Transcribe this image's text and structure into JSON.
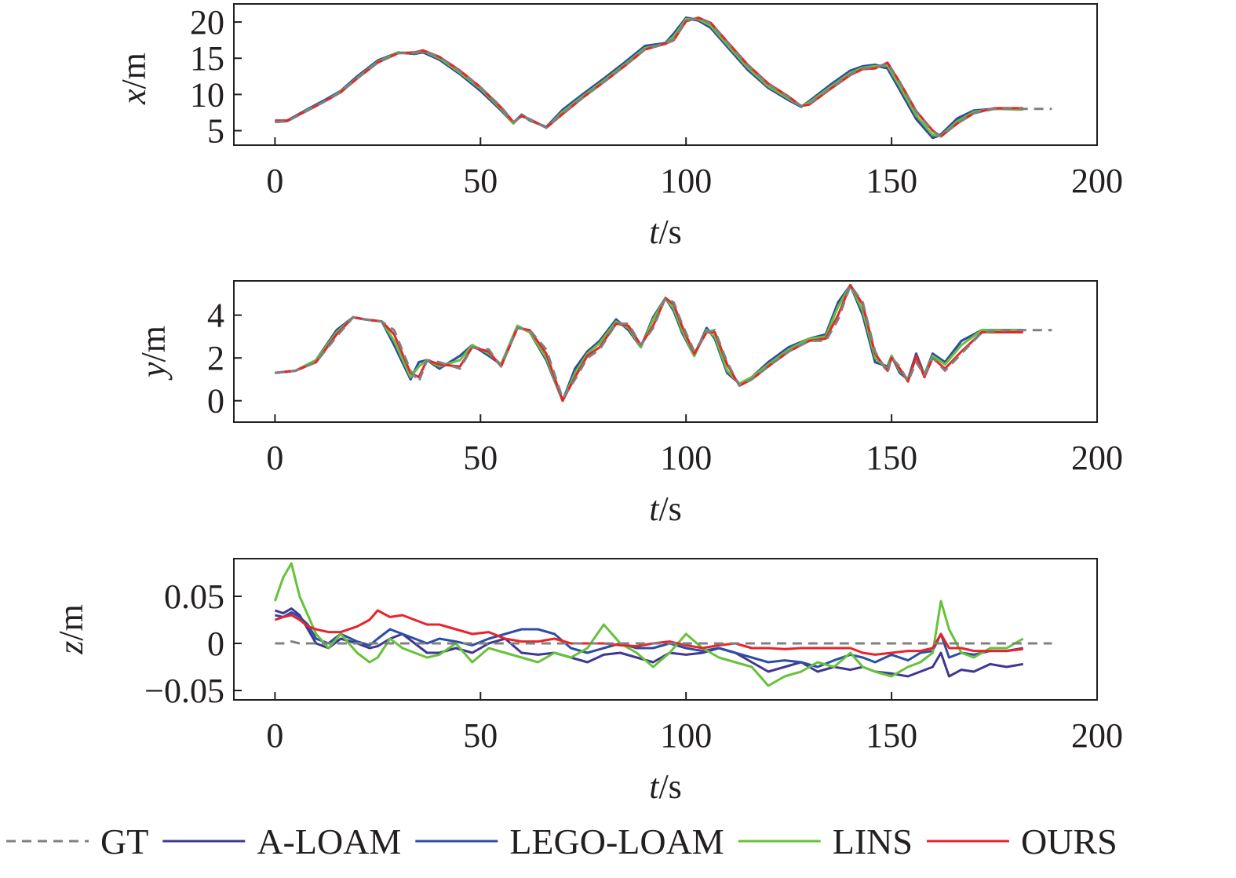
{
  "legend": {
    "placement": "bottom",
    "items": [
      {
        "label": "GT",
        "color": "#808080",
        "dash": true
      },
      {
        "label": "A-LOAM",
        "color": "#3f3893",
        "dash": false
      },
      {
        "label": "LEGO-LOAM",
        "color": "#2c4ea3",
        "dash": false
      },
      {
        "label": "LINS",
        "color": "#66c23a",
        "dash": false
      },
      {
        "label": "OURS",
        "color": "#e8242a",
        "dash": false
      }
    ]
  },
  "chart_data": [
    {
      "type": "line",
      "title": "",
      "xlabel_var": "t",
      "xlabel_unit": "/s",
      "ylabel_var": "x",
      "ylabel_unit": "/m",
      "xlim": [
        -10,
        200
      ],
      "ylim": [
        3,
        22.5
      ],
      "xticks": [
        0,
        50,
        100,
        150,
        200
      ],
      "yticks": [
        5,
        10,
        15,
        20
      ],
      "grid": false,
      "x": [
        0,
        3,
        8,
        12,
        16,
        20,
        25,
        30,
        34,
        36,
        40,
        45,
        50,
        55,
        58,
        60,
        62,
        66,
        70,
        75,
        80,
        85,
        90,
        95,
        97,
        100,
        103,
        106,
        110,
        115,
        120,
        125,
        128,
        130,
        135,
        140,
        143,
        146,
        149,
        152,
        156,
        160,
        162,
        166,
        170,
        175,
        182
      ],
      "series": [
        {
          "name": "GT",
          "values": [
            6.2,
            6.3,
            7.8,
            9.0,
            10.3,
            12.2,
            14.4,
            15.7,
            15.7,
            16.0,
            15.2,
            13.2,
            11.0,
            8.3,
            6.2,
            7.0,
            6.6,
            5.4,
            7.4,
            9.6,
            11.7,
            13.9,
            16.2,
            17.0,
            17.6,
            20.2,
            20.6,
            19.8,
            17.2,
            14.0,
            11.4,
            9.6,
            8.4,
            8.7,
            10.8,
            12.8,
            13.6,
            13.7,
            14.3,
            11.6,
            7.6,
            4.9,
            4.2,
            6.0,
            7.4,
            8.0,
            8.0
          ]
        },
        {
          "name": "A-LOAM",
          "values": [
            6.2,
            6.3,
            7.9,
            9.1,
            10.4,
            12.4,
            14.6,
            15.8,
            15.6,
            15.8,
            14.8,
            12.8,
            10.5,
            7.8,
            6.0,
            7.2,
            6.4,
            5.5,
            7.8,
            10.0,
            12.1,
            14.3,
            16.6,
            17.1,
            18.3,
            20.5,
            20.2,
            19.2,
            16.6,
            13.4,
            10.9,
            9.2,
            8.3,
            9.0,
            11.2,
            13.2,
            13.8,
            14.0,
            13.6,
            10.6,
            6.6,
            4.0,
            4.4,
            6.6,
            7.7,
            8.0,
            8.0
          ]
        },
        {
          "name": "LEGO-LOAM",
          "values": [
            6.3,
            6.4,
            8.0,
            9.2,
            10.5,
            12.5,
            14.7,
            15.8,
            15.6,
            15.9,
            14.9,
            12.9,
            10.6,
            7.9,
            6.1,
            7.2,
            6.5,
            5.5,
            7.9,
            10.1,
            12.2,
            14.4,
            16.7,
            17.1,
            18.4,
            20.6,
            20.3,
            19.3,
            16.7,
            13.5,
            11.0,
            9.3,
            8.3,
            9.1,
            11.3,
            13.3,
            13.9,
            14.1,
            13.7,
            10.8,
            6.8,
            4.1,
            4.5,
            6.7,
            7.8,
            8.0,
            8.0
          ]
        },
        {
          "name": "LINS",
          "values": [
            6.2,
            6.3,
            7.9,
            9.0,
            10.4,
            12.3,
            14.5,
            15.8,
            15.7,
            16.0,
            15.0,
            13.0,
            10.8,
            8.0,
            6.0,
            7.1,
            6.5,
            5.4,
            7.6,
            9.8,
            11.9,
            14.1,
            16.4,
            17.0,
            18.0,
            20.4,
            20.4,
            19.5,
            16.9,
            13.7,
            11.1,
            9.4,
            8.4,
            8.9,
            11.0,
            13.0,
            13.7,
            13.9,
            14.0,
            11.1,
            7.1,
            4.4,
            4.3,
            6.3,
            7.6,
            8.0,
            7.9
          ]
        },
        {
          "name": "OURS",
          "values": [
            6.4,
            6.4,
            7.8,
            9.0,
            10.3,
            12.2,
            14.4,
            15.7,
            15.8,
            16.1,
            15.2,
            13.3,
            11.0,
            8.2,
            6.2,
            7.0,
            6.6,
            5.4,
            7.3,
            9.6,
            11.7,
            13.9,
            16.2,
            17.0,
            17.5,
            20.1,
            20.6,
            19.9,
            17.3,
            14.1,
            11.5,
            9.7,
            8.4,
            8.6,
            10.7,
            12.7,
            13.5,
            13.6,
            14.4,
            11.7,
            7.7,
            5.0,
            4.2,
            6.0,
            7.4,
            8.1,
            8.1
          ]
        }
      ]
    },
    {
      "type": "line",
      "title": "",
      "xlabel_var": "t",
      "xlabel_unit": "/s",
      "ylabel_var": "y",
      "ylabel_unit": "/m",
      "xlim": [
        -10,
        200
      ],
      "ylim": [
        -1.0,
        5.6
      ],
      "xticks": [
        0,
        50,
        100,
        150,
        200
      ],
      "yticks": [
        0,
        2,
        4
      ],
      "grid": false,
      "x": [
        0,
        5,
        10,
        15,
        19,
        22,
        26,
        29,
        33,
        35,
        37,
        40,
        45,
        48,
        52,
        55,
        59,
        62,
        66,
        70,
        73,
        76,
        79,
        83,
        86,
        89,
        92,
        95,
        97,
        99,
        102,
        105,
        107,
        110,
        113,
        116,
        120,
        125,
        130,
        134,
        137,
        140,
        143,
        146,
        149,
        150,
        152,
        154,
        156,
        158,
        160,
        163,
        167,
        172,
        178,
        182
      ],
      "series": [
        {
          "name": "GT",
          "values": [
            1.3,
            1.4,
            1.8,
            3.0,
            3.9,
            3.8,
            3.7,
            3.3,
            1.4,
            0.9,
            1.9,
            1.8,
            1.5,
            2.5,
            2.4,
            1.6,
            3.4,
            3.3,
            2.4,
            0.1,
            1.0,
            2.0,
            2.4,
            3.6,
            3.6,
            2.6,
            3.4,
            4.8,
            4.6,
            3.6,
            2.3,
            3.2,
            3.3,
            1.8,
            0.7,
            1.0,
            1.6,
            2.3,
            2.8,
            2.8,
            3.8,
            5.4,
            4.6,
            2.3,
            1.3,
            2.0,
            1.6,
            0.9,
            1.8,
            1.2,
            2.0,
            1.4,
            2.2,
            3.2,
            3.3,
            3.3
          ]
        },
        {
          "name": "A-LOAM",
          "values": [
            1.3,
            1.4,
            1.9,
            3.3,
            3.9,
            3.8,
            3.7,
            2.6,
            1.0,
            1.8,
            1.9,
            1.5,
            2.1,
            2.6,
            2.1,
            1.7,
            3.5,
            3.2,
            1.9,
            0.0,
            1.5,
            2.3,
            2.8,
            3.8,
            3.3,
            2.5,
            3.9,
            4.8,
            4.2,
            3.2,
            2.1,
            3.4,
            2.9,
            1.3,
            0.8,
            1.1,
            1.8,
            2.5,
            2.9,
            3.1,
            4.6,
            5.4,
            4.0,
            1.8,
            1.6,
            2.1,
            1.3,
            1.0,
            2.2,
            1.2,
            2.2,
            1.8,
            2.8,
            3.3,
            3.3,
            3.3
          ]
        },
        {
          "name": "LEGO-LOAM",
          "values": [
            1.3,
            1.4,
            1.9,
            3.3,
            3.9,
            3.8,
            3.7,
            2.6,
            1.0,
            1.8,
            1.9,
            1.5,
            2.1,
            2.6,
            2.1,
            1.7,
            3.5,
            3.2,
            1.9,
            0.0,
            1.5,
            2.3,
            2.8,
            3.8,
            3.3,
            2.5,
            3.9,
            4.8,
            4.2,
            3.2,
            2.1,
            3.4,
            2.9,
            1.3,
            0.8,
            1.1,
            1.8,
            2.5,
            2.9,
            3.1,
            4.6,
            5.4,
            4.0,
            1.8,
            1.6,
            2.1,
            1.3,
            1.0,
            2.2,
            1.2,
            2.2,
            1.8,
            2.8,
            3.3,
            3.3,
            3.3
          ]
        },
        {
          "name": "LINS",
          "values": [
            1.3,
            1.4,
            1.9,
            3.2,
            3.9,
            3.8,
            3.7,
            2.8,
            1.1,
            1.6,
            1.9,
            1.6,
            1.9,
            2.6,
            2.2,
            1.7,
            3.5,
            3.2,
            2.0,
            0.0,
            1.3,
            2.2,
            2.7,
            3.7,
            3.4,
            2.5,
            3.8,
            4.8,
            4.3,
            3.3,
            2.1,
            3.3,
            3.0,
            1.4,
            0.8,
            1.1,
            1.7,
            2.4,
            2.9,
            3.0,
            4.4,
            5.4,
            4.2,
            2.0,
            1.5,
            2.1,
            1.4,
            1.0,
            2.0,
            1.2,
            2.1,
            1.7,
            2.6,
            3.3,
            3.3,
            3.3
          ]
        },
        {
          "name": "OURS",
          "values": [
            1.3,
            1.4,
            1.8,
            3.1,
            3.9,
            3.8,
            3.7,
            3.1,
            1.3,
            1.1,
            1.9,
            1.7,
            1.6,
            2.5,
            2.3,
            1.6,
            3.4,
            3.3,
            2.2,
            0.0,
            1.1,
            2.1,
            2.5,
            3.6,
            3.5,
            2.6,
            3.5,
            4.8,
            4.5,
            3.5,
            2.2,
            3.2,
            3.2,
            1.7,
            0.7,
            1.0,
            1.6,
            2.3,
            2.8,
            2.9,
            4.0,
            5.4,
            4.5,
            2.2,
            1.4,
            2.0,
            1.5,
            0.9,
            2.1,
            1.1,
            2.0,
            1.5,
            2.3,
            3.2,
            3.2,
            3.2
          ]
        }
      ]
    },
    {
      "type": "line",
      "title": "",
      "xlabel_var": "t",
      "xlabel_unit": "/s",
      "ylabel_var": "z",
      "ylabel_unit": "/m",
      "xlim": [
        -10,
        200
      ],
      "ylim": [
        -0.06,
        0.09
      ],
      "xticks": [
        0,
        50,
        100,
        150,
        200
      ],
      "yticks": [
        -0.05,
        0,
        0.05
      ],
      "ytick_labels": [
        "−0.05",
        "0",
        "0.05"
      ],
      "grid": false,
      "x": [
        0,
        2,
        4,
        6,
        8,
        10,
        13,
        16,
        20,
        23,
        25,
        28,
        31,
        34,
        37,
        40,
        44,
        48,
        52,
        56,
        60,
        64,
        68,
        72,
        76,
        80,
        84,
        88,
        92,
        96,
        100,
        104,
        108,
        112,
        116,
        120,
        124,
        128,
        132,
        136,
        140,
        143,
        146,
        150,
        154,
        157,
        160,
        162,
        164,
        167,
        170,
        174,
        178,
        182
      ],
      "series": [
        {
          "name": "GT",
          "values": [
            0.0,
            0.0,
            0.002,
            0.0,
            0.0,
            0.0,
            0.0,
            0.0,
            0.0,
            0.0,
            0.0,
            0.0,
            0.0,
            0.0,
            0.0,
            0.0,
            0.0,
            0.0,
            0.0,
            0.0,
            0.0,
            0.0,
            0.0,
            0.0,
            0.0,
            0.0,
            0.0,
            0.0,
            0.0,
            0.0,
            0.0,
            0.0,
            0.0,
            0.0,
            0.0,
            0.0,
            0.0,
            0.0,
            0.0,
            0.0,
            0.0,
            0.0,
            0.0,
            0.0,
            0.0,
            0.0,
            0.0,
            0.0,
            0.0,
            0.0,
            0.0,
            0.0,
            0.0,
            0.0
          ]
        },
        {
          "name": "A-LOAM",
          "values": [
            0.035,
            0.032,
            0.037,
            0.03,
            0.015,
            0.0,
            -0.005,
            0.005,
            0.0,
            -0.005,
            -0.003,
            0.005,
            0.01,
            0.0,
            -0.01,
            -0.01,
            -0.005,
            -0.01,
            0.0,
            0.005,
            -0.01,
            -0.012,
            -0.01,
            -0.015,
            -0.02,
            -0.012,
            -0.01,
            -0.015,
            -0.02,
            -0.01,
            -0.012,
            -0.01,
            -0.005,
            -0.01,
            -0.02,
            -0.03,
            -0.025,
            -0.02,
            -0.03,
            -0.025,
            -0.028,
            -0.025,
            -0.03,
            -0.032,
            -0.035,
            -0.03,
            -0.025,
            -0.01,
            -0.035,
            -0.028,
            -0.03,
            -0.022,
            -0.025,
            -0.022
          ]
        },
        {
          "name": "LEGO-LOAM",
          "values": [
            0.03,
            0.028,
            0.033,
            0.028,
            0.02,
            0.005,
            0.0,
            0.01,
            0.002,
            -0.002,
            0.005,
            0.015,
            0.01,
            0.005,
            0.0,
            0.005,
            0.002,
            -0.002,
            0.005,
            0.01,
            0.015,
            0.015,
            0.01,
            -0.005,
            -0.01,
            -0.005,
            0.0,
            -0.005,
            -0.005,
            0.0,
            -0.005,
            -0.008,
            -0.005,
            -0.01,
            -0.015,
            -0.02,
            -0.018,
            -0.02,
            -0.025,
            -0.018,
            -0.012,
            -0.015,
            -0.02,
            -0.012,
            -0.018,
            -0.01,
            -0.008,
            0.01,
            -0.015,
            -0.01,
            -0.012,
            -0.008,
            -0.008,
            -0.005
          ]
        },
        {
          "name": "LINS",
          "values": [
            0.045,
            0.07,
            0.085,
            0.05,
            0.03,
            0.01,
            -0.005,
            0.01,
            -0.01,
            -0.02,
            -0.015,
            0.005,
            -0.005,
            -0.01,
            -0.015,
            -0.012,
            0.0,
            -0.02,
            -0.005,
            -0.01,
            -0.015,
            -0.02,
            -0.01,
            -0.015,
            -0.005,
            0.02,
            0.0,
            -0.01,
            -0.025,
            -0.01,
            0.01,
            -0.005,
            -0.015,
            -0.02,
            -0.025,
            -0.045,
            -0.035,
            -0.03,
            -0.02,
            -0.025,
            -0.01,
            -0.025,
            -0.03,
            -0.035,
            -0.025,
            -0.02,
            -0.01,
            0.045,
            0.015,
            -0.01,
            -0.015,
            -0.005,
            -0.005,
            0.005
          ]
        },
        {
          "name": "OURS",
          "values": [
            0.025,
            0.028,
            0.03,
            0.025,
            0.018,
            0.015,
            0.012,
            0.012,
            0.018,
            0.025,
            0.035,
            0.028,
            0.03,
            0.025,
            0.02,
            0.02,
            0.015,
            0.01,
            0.012,
            0.005,
            0.002,
            0.002,
            0.005,
            0.0,
            0.0,
            0.0,
            -0.002,
            -0.003,
            0.0,
            0.002,
            -0.002,
            -0.005,
            -0.002,
            0.0,
            -0.005,
            -0.005,
            -0.006,
            -0.005,
            -0.005,
            -0.005,
            -0.005,
            -0.01,
            -0.012,
            -0.01,
            -0.008,
            -0.008,
            -0.005,
            0.01,
            -0.005,
            -0.005,
            -0.008,
            -0.008,
            -0.008,
            -0.006
          ]
        }
      ]
    }
  ]
}
